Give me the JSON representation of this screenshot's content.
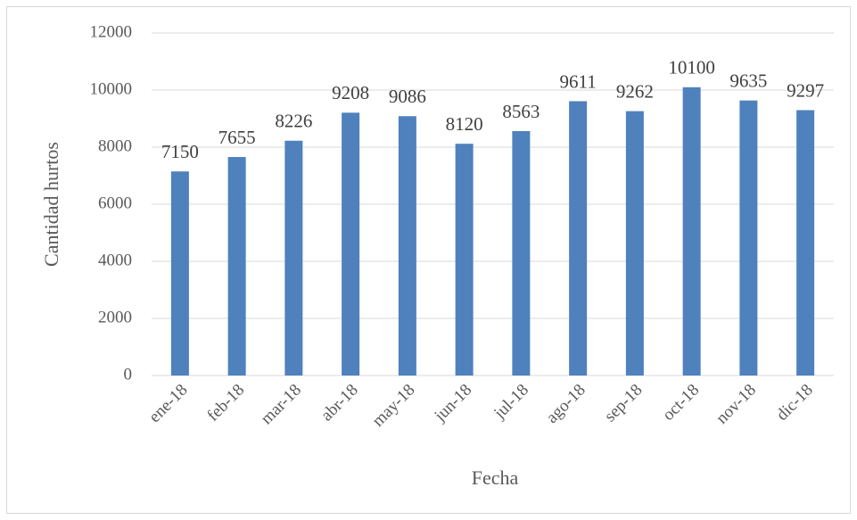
{
  "chart_data": {
    "type": "bar",
    "categories": [
      "ene-18",
      "feb-18",
      "mar-18",
      "abr-18",
      "may-18",
      "jun-18",
      "jul-18",
      "ago-18",
      "sep-18",
      "oct-18",
      "nov-18",
      "dic-18"
    ],
    "values": [
      7150,
      7655,
      8226,
      9208,
      9086,
      8120,
      8563,
      9611,
      9262,
      10100,
      9635,
      9297
    ],
    "color": "#4f81bd",
    "ylim": [
      0,
      12000
    ],
    "yticks": [
      0,
      2000,
      4000,
      6000,
      8000,
      10000,
      12000
    ],
    "grid": true,
    "x_label": "Fecha",
    "y_label": "Cantidad hurtos"
  }
}
